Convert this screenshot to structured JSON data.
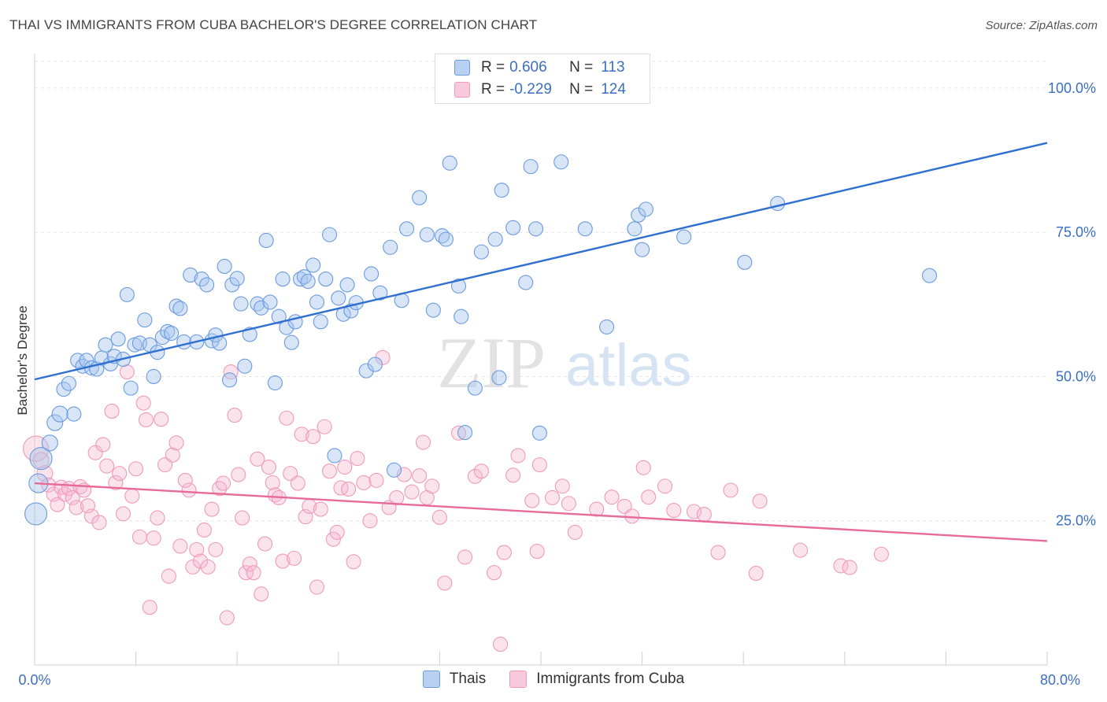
{
  "header": {
    "title": "THAI VS IMMIGRANTS FROM CUBA BACHELOR'S DEGREE CORRELATION CHART",
    "source": "Source: ZipAtlas.com"
  },
  "watermark": {
    "zip": "ZIP",
    "atlas": "atlas"
  },
  "legend_top": {
    "rows": [
      {
        "r_label": "R =",
        "r_value": "0.606",
        "n_label": "N =",
        "n_value": "113"
      },
      {
        "r_label": "R =",
        "r_value": "-0.229",
        "n_label": "N =",
        "n_value": "124"
      }
    ]
  },
  "legend_bottom": {
    "items": [
      "Thais",
      "Immigrants from Cuba"
    ]
  },
  "chart_data": {
    "type": "scatter",
    "title": "THAI VS IMMIGRANTS FROM CUBA BACHELOR'S DEGREE CORRELATION CHART",
    "xlabel": "",
    "ylabel": "Bachelor's Degree",
    "xlim": [
      0,
      80
    ],
    "ylim": [
      0,
      104
    ],
    "x_ticks_labeled": [
      "0.0%",
      "80.0%"
    ],
    "y_ticks": [
      {
        "value": 25,
        "label": "25.0%"
      },
      {
        "value": 50,
        "label": "50.0%"
      },
      {
        "value": 75,
        "label": "75.0%"
      },
      {
        "value": 100,
        "label": "100.0%"
      }
    ],
    "grid": "horizontal dashed",
    "colors": {
      "thais": "#6a9be0",
      "cuba": "#f09ab8",
      "thais_line": "#2f6fd0",
      "cuba_line": "#e86a98",
      "axis_label": "#3b6fc2"
    },
    "series": [
      {
        "name": "Thais",
        "trend": [
          [
            0,
            49.5
          ],
          [
            80,
            90.5
          ]
        ],
        "points": [
          [
            0.1,
            26.2,
            14
          ],
          [
            0.3,
            31.5,
            12
          ],
          [
            0.5,
            35.8,
            14
          ],
          [
            1.2,
            38.5,
            10
          ],
          [
            1.6,
            42.0,
            10
          ],
          [
            2.0,
            43.5,
            10
          ],
          [
            2.3,
            47.8,
            9
          ],
          [
            2.7,
            48.8,
            9
          ],
          [
            3.1,
            43.5,
            9
          ],
          [
            3.4,
            52.8,
            9
          ],
          [
            3.8,
            51.8,
            9
          ],
          [
            4.1,
            52.8,
            9
          ],
          [
            4.5,
            51.5,
            9
          ],
          [
            4.9,
            51.3,
            9
          ],
          [
            5.3,
            53.2,
            9
          ],
          [
            5.6,
            55.5,
            9
          ],
          [
            6.0,
            52.2,
            9
          ],
          [
            6.3,
            53.5,
            9
          ],
          [
            6.6,
            56.5,
            9
          ],
          [
            7.0,
            53.0,
            9
          ],
          [
            7.3,
            64.2,
            9
          ],
          [
            7.6,
            48.0,
            9
          ],
          [
            7.9,
            55.5,
            9
          ],
          [
            8.3,
            55.8,
            9
          ],
          [
            8.7,
            59.8,
            9
          ],
          [
            9.1,
            55.5,
            9
          ],
          [
            9.4,
            50.0,
            9
          ],
          [
            9.7,
            54.2,
            9
          ],
          [
            10.1,
            56.8,
            9
          ],
          [
            10.5,
            57.8,
            9
          ],
          [
            10.8,
            57.5,
            9
          ],
          [
            11.2,
            62.2,
            9
          ],
          [
            11.5,
            61.8,
            9
          ],
          [
            11.8,
            56.0,
            9
          ],
          [
            12.3,
            67.6,
            9
          ],
          [
            12.8,
            56.0,
            9
          ],
          [
            13.2,
            66.9,
            9
          ],
          [
            13.6,
            65.9,
            9
          ],
          [
            14.0,
            56.2,
            9
          ],
          [
            14.3,
            57.2,
            9
          ],
          [
            14.6,
            55.8,
            9
          ],
          [
            15.0,
            69.1,
            9
          ],
          [
            15.4,
            49.4,
            9
          ],
          [
            15.6,
            65.9,
            9
          ],
          [
            16.0,
            67.0,
            9
          ],
          [
            16.3,
            62.6,
            9
          ],
          [
            16.6,
            51.8,
            9
          ],
          [
            17.0,
            57.3,
            9
          ],
          [
            17.6,
            62.6,
            9
          ],
          [
            17.9,
            61.9,
            9
          ],
          [
            18.3,
            73.6,
            9
          ],
          [
            18.6,
            62.9,
            9
          ],
          [
            19.0,
            48.9,
            9
          ],
          [
            19.3,
            60.4,
            9
          ],
          [
            19.6,
            66.9,
            9
          ],
          [
            19.9,
            58.5,
            9
          ],
          [
            20.3,
            55.9,
            9
          ],
          [
            20.6,
            59.5,
            9
          ],
          [
            21.0,
            66.9,
            9
          ],
          [
            21.3,
            67.3,
            9
          ],
          [
            21.6,
            66.5,
            9
          ],
          [
            22.0,
            69.3,
            9
          ],
          [
            22.3,
            62.9,
            9
          ],
          [
            22.6,
            59.5,
            9
          ],
          [
            23.0,
            66.9,
            9
          ],
          [
            23.3,
            74.6,
            9
          ],
          [
            23.7,
            36.3,
            9
          ],
          [
            24.0,
            63.6,
            9
          ],
          [
            24.4,
            60.8,
            9
          ],
          [
            24.7,
            65.9,
            9
          ],
          [
            25.0,
            61.4,
            9
          ],
          [
            25.4,
            62.8,
            9
          ],
          [
            26.2,
            51.0,
            9
          ],
          [
            26.6,
            67.8,
            9
          ],
          [
            26.9,
            52.1,
            9
          ],
          [
            27.3,
            64.5,
            9
          ],
          [
            28.1,
            72.4,
            9
          ],
          [
            28.4,
            33.8,
            9
          ],
          [
            29.0,
            63.2,
            9
          ],
          [
            29.4,
            75.6,
            9
          ],
          [
            30.4,
            81.0,
            9
          ],
          [
            31.0,
            74.6,
            9
          ],
          [
            31.5,
            61.5,
            9
          ],
          [
            32.2,
            74.4,
            9
          ],
          [
            32.5,
            73.8,
            9
          ],
          [
            32.8,
            87.0,
            9
          ],
          [
            33.5,
            65.7,
            9
          ],
          [
            33.7,
            60.4,
            9
          ],
          [
            34.0,
            40.3,
            9
          ],
          [
            34.8,
            48.0,
            9
          ],
          [
            35.3,
            71.6,
            9
          ],
          [
            36.4,
            73.8,
            9
          ],
          [
            36.7,
            49.8,
            9
          ],
          [
            36.9,
            82.3,
            9
          ],
          [
            37.8,
            75.8,
            9
          ],
          [
            38.8,
            66.3,
            9
          ],
          [
            39.2,
            86.4,
            9
          ],
          [
            39.6,
            75.6,
            9
          ],
          [
            39.9,
            40.2,
            9
          ],
          [
            41.6,
            87.2,
            9
          ],
          [
            43.5,
            75.6,
            9
          ],
          [
            45.2,
            58.6,
            9
          ],
          [
            47.4,
            75.6,
            9
          ],
          [
            47.7,
            78.0,
            9
          ],
          [
            48.0,
            72.0,
            9
          ],
          [
            48.3,
            79.0,
            9
          ],
          [
            51.3,
            74.2,
            9
          ],
          [
            56.1,
            69.8,
            9
          ],
          [
            58.7,
            80.0,
            9
          ],
          [
            70.7,
            67.5,
            9
          ]
        ]
      },
      {
        "name": "Immigrants from Cuba",
        "trend": [
          [
            0,
            31.5
          ],
          [
            80,
            21.5
          ]
        ],
        "points": [
          [
            0.1,
            37.5,
            16
          ],
          [
            0.5,
            35.5,
            10
          ],
          [
            0.8,
            33.2,
            10
          ],
          [
            1.1,
            31.2,
            9
          ],
          [
            1.5,
            29.6,
            9
          ],
          [
            1.8,
            27.8,
            9
          ],
          [
            2.1,
            30.8,
            9
          ],
          [
            2.4,
            29.6,
            9
          ],
          [
            2.7,
            30.6,
            9
          ],
          [
            3.0,
            29.0,
            9
          ],
          [
            3.3,
            27.3,
            9
          ],
          [
            3.6,
            30.9,
            9
          ],
          [
            3.9,
            30.3,
            9
          ],
          [
            4.2,
            27.6,
            9
          ],
          [
            4.5,
            25.8,
            9
          ],
          [
            4.8,
            36.8,
            9
          ],
          [
            5.1,
            24.7,
            9
          ],
          [
            5.4,
            38.2,
            9
          ],
          [
            5.7,
            34.5,
            9
          ],
          [
            6.1,
            44.0,
            9
          ],
          [
            6.4,
            31.6,
            9
          ],
          [
            6.7,
            33.2,
            9
          ],
          [
            7.0,
            26.2,
            9
          ],
          [
            7.3,
            50.8,
            9
          ],
          [
            7.7,
            29.3,
            9
          ],
          [
            8.0,
            34.0,
            9
          ],
          [
            8.3,
            22.2,
            9
          ],
          [
            8.6,
            45.4,
            9
          ],
          [
            8.8,
            42.5,
            9
          ],
          [
            9.1,
            10.0,
            9
          ],
          [
            9.4,
            22.0,
            9
          ],
          [
            9.7,
            25.5,
            9
          ],
          [
            10.0,
            42.6,
            9
          ],
          [
            10.3,
            34.7,
            9
          ],
          [
            10.6,
            15.4,
            9
          ],
          [
            10.9,
            36.4,
            9
          ],
          [
            11.2,
            38.5,
            9
          ],
          [
            11.5,
            20.6,
            9
          ],
          [
            11.9,
            32.0,
            9
          ],
          [
            12.2,
            30.3,
            9
          ],
          [
            12.5,
            17.0,
            9
          ],
          [
            12.8,
            20.0,
            9
          ],
          [
            13.1,
            18.0,
            9
          ],
          [
            13.4,
            23.4,
            9
          ],
          [
            13.7,
            17.0,
            9
          ],
          [
            14.0,
            27.0,
            9
          ],
          [
            14.3,
            20.0,
            9
          ],
          [
            14.6,
            30.6,
            9
          ],
          [
            14.9,
            31.5,
            9
          ],
          [
            15.2,
            8.2,
            9
          ],
          [
            15.5,
            50.8,
            9
          ],
          [
            15.8,
            43.3,
            9
          ],
          [
            16.1,
            33.0,
            9
          ],
          [
            16.4,
            25.5,
            9
          ],
          [
            16.7,
            16.0,
            9
          ],
          [
            17.0,
            17.5,
            9
          ],
          [
            17.3,
            16.0,
            9
          ],
          [
            17.6,
            35.7,
            9
          ],
          [
            17.9,
            12.3,
            9
          ],
          [
            18.2,
            21.0,
            9
          ],
          [
            18.5,
            34.3,
            9
          ],
          [
            18.8,
            31.6,
            9
          ],
          [
            19.0,
            29.5,
            9
          ],
          [
            19.3,
            29.0,
            9
          ],
          [
            19.6,
            18.0,
            9
          ],
          [
            19.9,
            42.8,
            9
          ],
          [
            20.2,
            33.2,
            9
          ],
          [
            20.5,
            18.5,
            9
          ],
          [
            20.8,
            31.5,
            9
          ],
          [
            21.1,
            40.0,
            9
          ],
          [
            21.4,
            25.7,
            9
          ],
          [
            21.7,
            27.5,
            9
          ],
          [
            22.0,
            39.6,
            9
          ],
          [
            22.3,
            13.5,
            9
          ],
          [
            22.6,
            27.0,
            9
          ],
          [
            22.9,
            41.3,
            9
          ],
          [
            23.3,
            33.6,
            9
          ],
          [
            23.6,
            21.8,
            9
          ],
          [
            23.9,
            23.0,
            9
          ],
          [
            24.2,
            30.7,
            9
          ],
          [
            24.5,
            34.3,
            9
          ],
          [
            24.8,
            30.5,
            9
          ],
          [
            25.2,
            17.9,
            9
          ],
          [
            25.5,
            35.8,
            9
          ],
          [
            26.0,
            31.6,
            9
          ],
          [
            26.5,
            25.0,
            9
          ],
          [
            27.0,
            32.0,
            9
          ],
          [
            27.5,
            53.3,
            9
          ],
          [
            28.0,
            27.3,
            9
          ],
          [
            28.6,
            29.0,
            9
          ],
          [
            29.2,
            33.0,
            9
          ],
          [
            29.8,
            30.0,
            9
          ],
          [
            30.4,
            32.8,
            9
          ],
          [
            30.7,
            38.6,
            9
          ],
          [
            31.0,
            29.0,
            9
          ],
          [
            31.4,
            31.0,
            9
          ],
          [
            32.0,
            25.6,
            9
          ],
          [
            32.4,
            14.2,
            9
          ],
          [
            33.5,
            40.2,
            9
          ],
          [
            34.0,
            18.7,
            9
          ],
          [
            34.8,
            32.7,
            9
          ],
          [
            35.3,
            33.6,
            9
          ],
          [
            36.3,
            16.0,
            9
          ],
          [
            36.8,
            3.6,
            9
          ],
          [
            37.1,
            19.5,
            9
          ],
          [
            37.8,
            32.9,
            9
          ],
          [
            38.2,
            36.3,
            9
          ],
          [
            39.3,
            28.5,
            9
          ],
          [
            39.7,
            19.7,
            9
          ],
          [
            39.9,
            34.7,
            9
          ],
          [
            40.9,
            29.0,
            9
          ],
          [
            41.7,
            31.0,
            9
          ],
          [
            42.2,
            28.0,
            9
          ],
          [
            42.7,
            23.0,
            9
          ],
          [
            44.4,
            27.0,
            9
          ],
          [
            45.6,
            29.1,
            9
          ],
          [
            46.6,
            27.5,
            9
          ],
          [
            47.2,
            25.8,
            9
          ],
          [
            48.1,
            34.2,
            9
          ],
          [
            48.5,
            29.1,
            9
          ],
          [
            49.8,
            31.0,
            9
          ],
          [
            50.5,
            26.8,
            9
          ],
          [
            52.1,
            26.6,
            9
          ],
          [
            52.9,
            26.1,
            9
          ],
          [
            54.0,
            19.5,
            9
          ],
          [
            55.0,
            30.3,
            9
          ],
          [
            57.0,
            15.9,
            9
          ],
          [
            57.3,
            28.4,
            9
          ],
          [
            60.5,
            19.9,
            9
          ],
          [
            63.7,
            17.2,
            9
          ],
          [
            64.4,
            16.9,
            9
          ],
          [
            66.9,
            19.2,
            9
          ]
        ]
      }
    ]
  }
}
